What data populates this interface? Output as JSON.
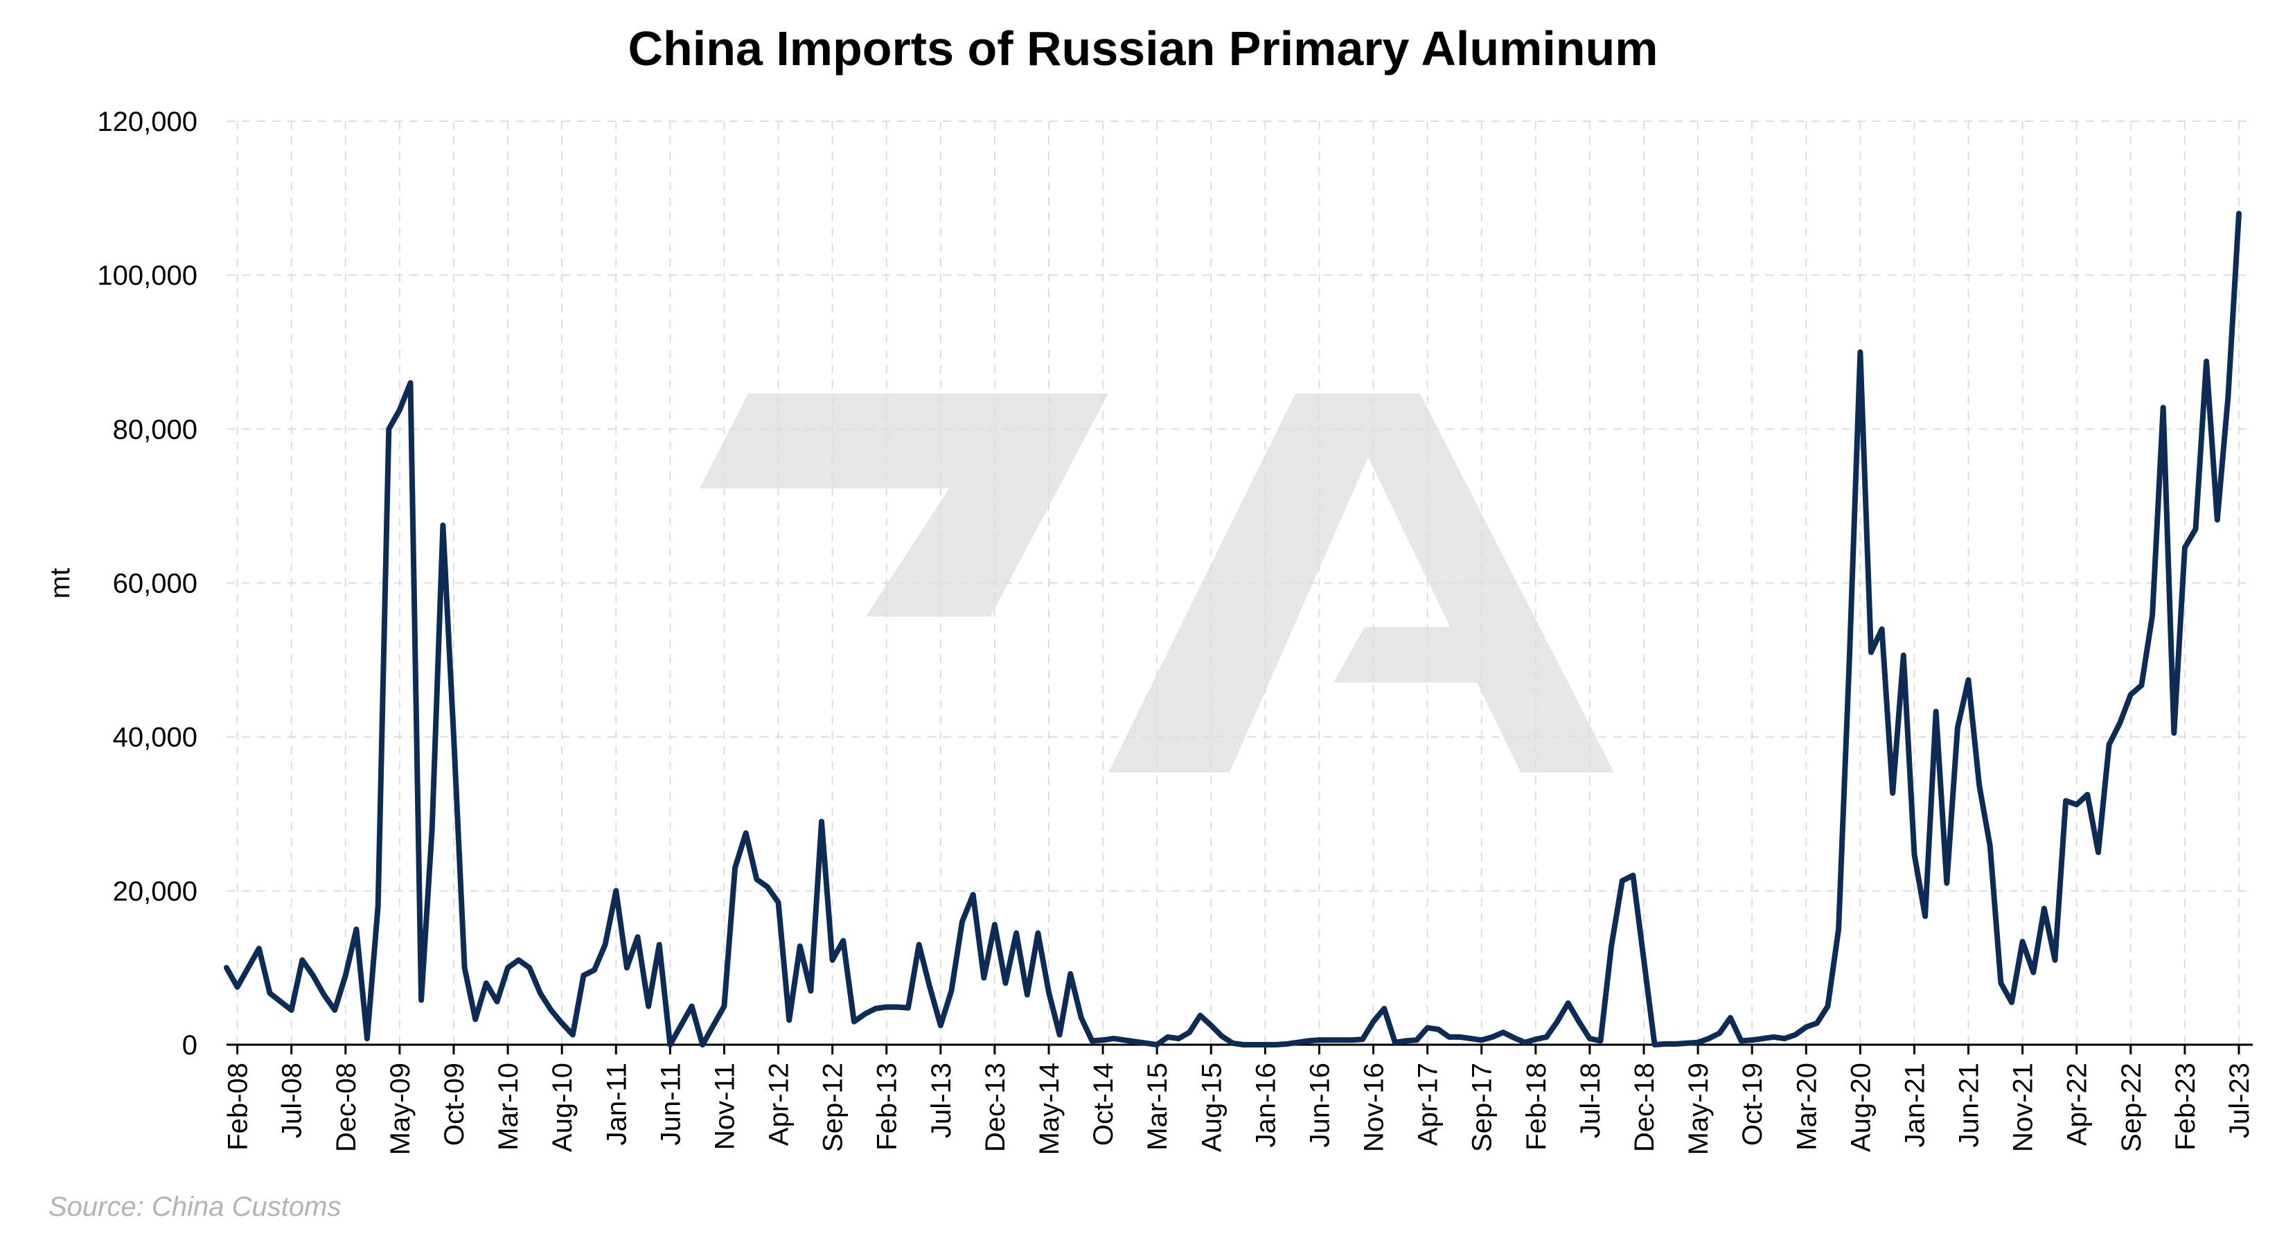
{
  "colors": {
    "line": "#0d2b55",
    "grid": "#dddddd",
    "watermark": "#e6e6e6",
    "source": "#b3b3b3"
  },
  "source": "Source: China Customs",
  "chart_data": {
    "type": "line",
    "title": "China Imports of Russian Primary Aluminum",
    "xlabel": "",
    "ylabel": "mt",
    "ylim": [
      0,
      120000
    ],
    "yticks": [
      "0",
      "20,000",
      "40,000",
      "60,000",
      "80,000",
      "100,000",
      "120,000"
    ],
    "yticks_values": [
      0,
      20000,
      40000,
      60000,
      80000,
      100000,
      120000
    ],
    "xticks": [
      "Feb-08",
      "Jul-08",
      "Dec-08",
      "May-09",
      "Oct-09",
      "Mar-10",
      "Aug-10",
      "Jan-11",
      "Jun-11",
      "Nov-11",
      "Apr-12",
      "Sep-12",
      "Feb-13",
      "Jul-13",
      "Dec-13",
      "May-14",
      "Oct-14",
      "Mar-15",
      "Aug-15",
      "Jan-16",
      "Jun-16",
      "Nov-16",
      "Apr-17",
      "Sep-17",
      "Feb-18",
      "Jul-18",
      "Dec-18",
      "May-19",
      "Oct-19",
      "Mar-20",
      "Aug-20",
      "Jan-21",
      "Jun-21",
      "Nov-21",
      "Apr-22",
      "Sep-22",
      "Feb-23",
      "Jul-23"
    ],
    "grid": true,
    "legend": "none",
    "x_start": "Jan-08",
    "x_end": "Jul-23",
    "series": [
      {
        "values": [
          10000,
          7500,
          10000,
          12500,
          6700,
          5600,
          4500,
          11000,
          9000,
          6500,
          4500,
          9000,
          15000,
          800,
          18000,
          80000,
          82500,
          86000,
          5800,
          28000,
          67500,
          40000,
          10000,
          3300,
          8000,
          5600,
          10000,
          11000,
          10000,
          6700,
          4500,
          2800,
          1300,
          9000,
          9700,
          13000,
          20000,
          10000,
          14000,
          5000,
          13000,
          0,
          2500,
          5000,
          0,
          2500,
          5000,
          23000,
          27500,
          21500,
          20500,
          18500,
          3200,
          12800,
          7000,
          29000,
          11000,
          13500,
          3000,
          4000,
          4700,
          4900,
          4900,
          4800,
          13000,
          7500,
          2500,
          7000,
          16000,
          19500,
          8700,
          15600,
          8000,
          14500,
          6500,
          14500,
          6800,
          1300,
          9200,
          3500,
          500,
          600,
          800,
          600,
          400,
          200,
          0,
          1000,
          800,
          1600,
          3800,
          2500,
          1100,
          200,
          0,
          0,
          0,
          0,
          100,
          300,
          500,
          600,
          600,
          600,
          600,
          700,
          3000,
          4700,
          300,
          500,
          600,
          2200,
          2000,
          1000,
          1000,
          800,
          600,
          1000,
          1600,
          900,
          300,
          700,
          1000,
          3000,
          5400,
          3000,
          800,
          500,
          12800,
          21300,
          22000,
          11000,
          0,
          100,
          100,
          200,
          300,
          800,
          1500,
          3500,
          500,
          600,
          800,
          1000,
          800,
          1300,
          2300,
          2800,
          5000,
          15000,
          50000,
          90000,
          51000,
          54000,
          32700,
          50600,
          24700,
          16700,
          43300,
          21000,
          41200,
          47400,
          33700,
          25800,
          8000,
          5500,
          13400,
          9400,
          17700,
          11000,
          31700,
          31200,
          32500,
          25000,
          39000,
          41800,
          45500,
          46700,
          55800,
          82800,
          40500,
          64600,
          67000,
          88800,
          68200,
          84200,
          108000
        ]
      }
    ]
  }
}
